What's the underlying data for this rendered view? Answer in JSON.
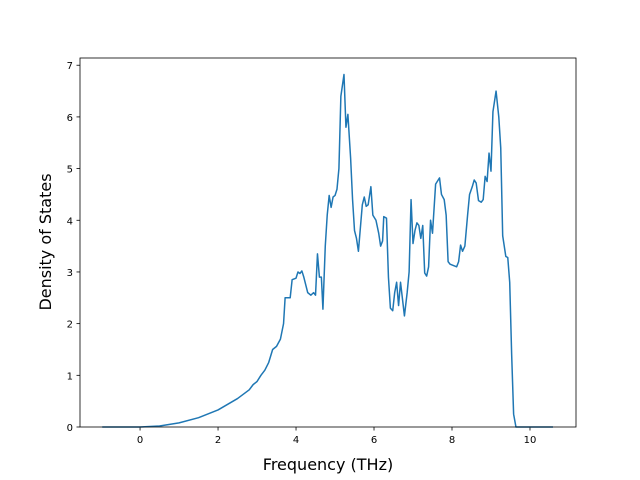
{
  "chart_data": {
    "type": "line",
    "x_label": "Frequency (THz)",
    "y_label": "Density of States",
    "xlim": [
      -1.54,
      11.18
    ],
    "ylim": [
      0,
      7.14
    ],
    "xticks": [
      0,
      2,
      4,
      6,
      8,
      10
    ],
    "yticks": [
      0,
      1,
      2,
      3,
      4,
      5,
      6,
      7
    ],
    "series": [
      {
        "color": "#1f77b4",
        "x": [
          -0.97,
          0,
          0.5,
          1,
          1.5,
          2,
          2.5,
          2.8,
          2.9,
          3.0,
          3.1,
          3.2,
          3.3,
          3.4,
          3.5,
          3.6,
          3.68,
          3.72,
          3.85,
          3.9,
          4.0,
          4.05,
          4.1,
          4.15,
          4.2,
          4.3,
          4.38,
          4.45,
          4.5,
          4.55,
          4.6,
          4.65,
          4.69,
          4.75,
          4.8,
          4.85,
          4.9,
          4.95,
          5.0,
          5.05,
          5.1,
          5.15,
          5.23,
          5.28,
          5.33,
          5.4,
          5.45,
          5.5,
          5.55,
          5.6,
          5.65,
          5.7,
          5.75,
          5.8,
          5.85,
          5.92,
          5.97,
          6.05,
          6.12,
          6.17,
          6.22,
          6.25,
          6.32,
          6.37,
          6.42,
          6.48,
          6.53,
          6.58,
          6.63,
          6.68,
          6.78,
          6.85,
          6.9,
          6.95,
          7.0,
          7.05,
          7.1,
          7.15,
          7.2,
          7.25,
          7.3,
          7.35,
          7.4,
          7.45,
          7.5,
          7.58,
          7.68,
          7.73,
          7.8,
          7.85,
          7.9,
          7.95,
          8.12,
          8.17,
          8.22,
          8.27,
          8.33,
          8.4,
          8.45,
          8.52,
          8.57,
          8.62,
          8.68,
          8.75,
          8.8,
          8.85,
          8.9,
          8.95,
          9.0,
          9.05,
          9.13,
          9.2,
          9.25,
          9.3,
          9.38,
          9.43,
          9.48,
          9.53,
          9.58,
          9.64,
          10.59
        ],
        "values": [
          0,
          0,
          0.02,
          0.08,
          0.18,
          0.33,
          0.55,
          0.72,
          0.82,
          0.88,
          1.0,
          1.1,
          1.25,
          1.5,
          1.56,
          1.7,
          2.0,
          2.5,
          2.5,
          2.85,
          2.88,
          3.0,
          2.97,
          3.02,
          2.9,
          2.6,
          2.55,
          2.6,
          2.55,
          3.35,
          2.9,
          2.9,
          2.28,
          3.5,
          4.1,
          4.48,
          4.25,
          4.45,
          4.48,
          4.6,
          5.0,
          6.4,
          6.82,
          5.8,
          6.05,
          5.2,
          4.4,
          3.8,
          3.65,
          3.4,
          3.85,
          4.3,
          4.45,
          4.27,
          4.3,
          4.65,
          4.1,
          4.0,
          3.75,
          3.5,
          3.6,
          4.07,
          4.04,
          2.9,
          2.3,
          2.25,
          2.6,
          2.8,
          2.35,
          2.8,
          2.15,
          2.6,
          3.0,
          4.4,
          3.55,
          3.8,
          3.95,
          3.9,
          3.65,
          3.9,
          2.98,
          2.92,
          3.1,
          4.0,
          3.75,
          4.7,
          4.82,
          4.5,
          4.4,
          4.1,
          3.2,
          3.15,
          3.1,
          3.2,
          3.52,
          3.4,
          3.5,
          4.1,
          4.5,
          4.65,
          4.78,
          4.72,
          4.38,
          4.35,
          4.4,
          4.85,
          4.75,
          5.3,
          4.95,
          6.1,
          6.5,
          6.0,
          5.4,
          3.7,
          3.3,
          3.28,
          2.8,
          1.4,
          0.25,
          0,
          0
        ]
      }
    ]
  }
}
